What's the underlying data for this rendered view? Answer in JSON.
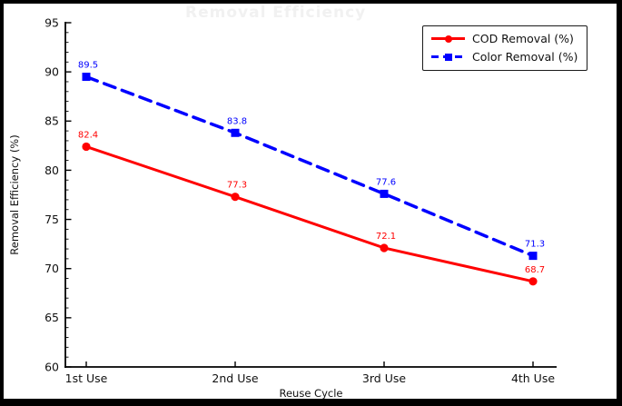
{
  "frame": {
    "border_color": "#000000",
    "background": "#ffffff"
  },
  "faint_title": "Removal Efficiency",
  "chart_data": {
    "type": "line",
    "title": "",
    "xlabel": "Reuse Cycle",
    "ylabel": "Removal Efficiency (%)",
    "categories": [
      "1st Use",
      "2nd Use",
      "3rd Use",
      "4th Use"
    ],
    "series": [
      {
        "name": "COD Removal (%)",
        "color": "#ff0000",
        "marker": "circle",
        "line_style": "solid",
        "values": [
          82.4,
          77.3,
          72.1,
          68.7
        ]
      },
      {
        "name": "Color Removal (%)",
        "color": "#0000ff",
        "marker": "square",
        "line_style": "dashed",
        "values": [
          89.5,
          83.8,
          77.6,
          71.3
        ]
      }
    ],
    "ylim": [
      60,
      95
    ],
    "yticks": [
      60,
      65,
      70,
      75,
      80,
      85,
      90,
      95
    ],
    "ytick_minor_step": 1,
    "grid": false,
    "legend_position": "upper right",
    "show_value_labels": true,
    "axis_color": "#000000",
    "tick_label_color": "#111111"
  },
  "legend": {
    "entries": [
      {
        "label": "COD Removal (%)"
      },
      {
        "label": "Color Removal (%)"
      }
    ]
  }
}
